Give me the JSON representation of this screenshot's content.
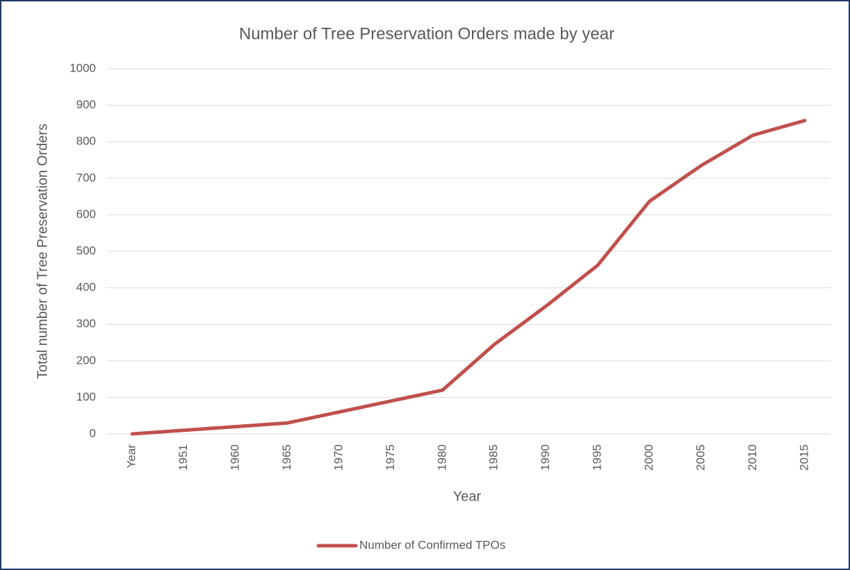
{
  "chart_data": {
    "type": "line",
    "title": "Number of Tree Preservation Orders made by year",
    "x_label": "Year",
    "y_label": "Total number of Tree Preservation Orders",
    "categories": [
      "Year",
      "1951",
      "1960",
      "1965",
      "1970",
      "1975",
      "1980",
      "1985",
      "1990",
      "1995",
      "2000",
      "2005",
      "2010",
      "2015"
    ],
    "series": [
      {
        "name": "Number of Confirmed TPOs",
        "color": "#c0504d",
        "values": [
          0,
          10,
          20,
          30,
          60,
          90,
          120,
          245,
          350,
          462,
          637,
          735,
          818,
          858
        ]
      }
    ],
    "ylim": [
      0,
      1000
    ],
    "yticks": [
      0,
      100,
      200,
      300,
      400,
      500,
      600,
      700,
      800,
      900,
      1000
    ],
    "grid": true,
    "legend": "bottom"
  }
}
